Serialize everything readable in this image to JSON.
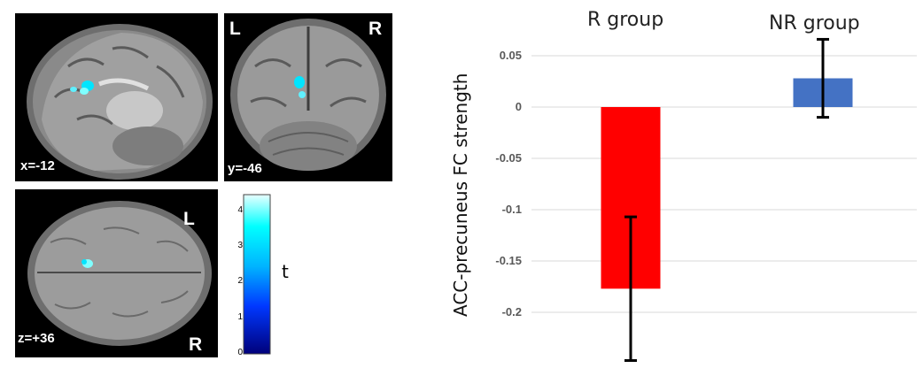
{
  "brain_panels": {
    "sagittal": {
      "coord": "x=-12"
    },
    "coronal": {
      "coord": "y=-46",
      "left_label": "L",
      "right_label": "R"
    },
    "axial": {
      "coord": "z=+36",
      "left_label": "L",
      "right_label": "R"
    }
  },
  "colorbar": {
    "ticks": [
      "0",
      "1",
      "2",
      "3",
      "4"
    ],
    "label": "t",
    "colors": [
      "#00007a",
      "#0038ff",
      "#00b4ff",
      "#00ffff",
      "#e8ffff"
    ]
  },
  "chart_data": {
    "type": "bar",
    "categories": [
      "R group",
      "NR group"
    ],
    "values": [
      -0.177,
      0.028
    ],
    "errors": [
      0.07,
      0.038
    ],
    "colors": [
      "#ff0000",
      "#4472c4"
    ],
    "ylabel": "ACC-precuneus FC strength",
    "xlabel": "",
    "ylim": [
      -0.25,
      0.05
    ],
    "yticks": [
      "0.05",
      "0",
      "-0.05",
      "-0.1",
      "-0.15",
      "-0.2"
    ],
    "ytick_values": [
      0.05,
      0,
      -0.05,
      -0.1,
      -0.15,
      -0.2
    ],
    "grid": true
  }
}
